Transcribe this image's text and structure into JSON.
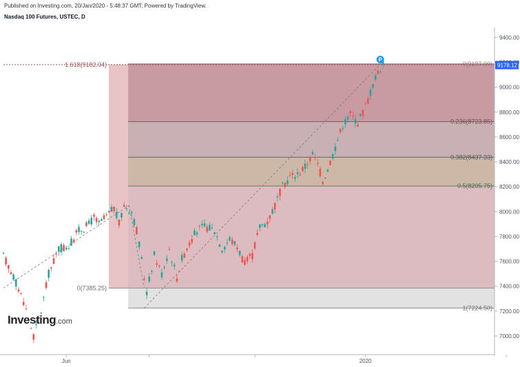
{
  "header": {
    "published": "Published on Investing.com, 20/Jan/2020 - 5:48:37 GMT, Powered by TradingView.",
    "symbol": "Nasdaq 100 Futures, USTEC, D"
  },
  "logo": {
    "main": "Investing",
    "suffix": ".com"
  },
  "colors": {
    "up_candle": "#26a69a",
    "down_candle": "#ef5350",
    "last_price_badge": "#2962ff",
    "fib_zone_top": "#c89aa2",
    "fib_zone_second": "#c8b0b4",
    "fib_zone_third": "#cdb8a8",
    "fib_zone_main": "#dcbcc0",
    "fib_zone_left_ext": "#e8c4c6",
    "fib_zone_bottom": "#e2e2e2"
  },
  "chart_data": {
    "type": "candlestick",
    "symbol": "USTEC",
    "ylim": [
      6850,
      9480
    ],
    "y_ticks": [
      {
        "value": 9400,
        "label": "9400.00"
      },
      {
        "value": 9200,
        "label": "9200.00"
      },
      {
        "value": 9000,
        "label": "9000.00"
      },
      {
        "value": 8800,
        "label": "8800.00"
      },
      {
        "value": 8600,
        "label": "8600.00"
      },
      {
        "value": 8400,
        "label": "8400.00"
      },
      {
        "value": 8200,
        "label": "8200.00"
      },
      {
        "value": 8000,
        "label": "8000.00"
      },
      {
        "value": 7800,
        "label": "7800.00"
      },
      {
        "value": 7600,
        "label": "7600.00"
      },
      {
        "value": 7400,
        "label": "7400.00"
      },
      {
        "value": 7200,
        "label": "7200.00"
      },
      {
        "value": 7000,
        "label": "7000.00"
      }
    ],
    "x_ticks": [
      {
        "index": 25,
        "label": "Jun"
      },
      {
        "index": 144,
        "label": "2020"
      }
    ],
    "x_minor_ticks": [
      58,
      100,
      200,
      240
    ],
    "last_price": {
      "value": 9178.12,
      "label": "9178.12"
    },
    "fib_levels": [
      {
        "ratio": 0,
        "value": 9187.0,
        "label": "0(9187.00)"
      },
      {
        "ratio": 0.236,
        "value": 8723.85,
        "label": "0.236(8723.85)"
      },
      {
        "ratio": 0.382,
        "value": 8437.33,
        "label": "0.382(8437.33)"
      },
      {
        "ratio": 0.5,
        "value": 8205.75,
        "label": "0.5(8205.75)"
      },
      {
        "ratio": 1,
        "value": 7224.5,
        "label": "1(7224.50)"
      }
    ],
    "fib_extension": [
      {
        "ratio": 1.618,
        "value": 9182.04,
        "label": "1.618(9182.04)"
      },
      {
        "ratio": 0,
        "value": 7385.25,
        "label": "0(7385.25)"
      }
    ],
    "trend_lines": [
      {
        "from": [
          0,
          7385.25
        ],
        "to": [
          50,
          8050
        ]
      },
      {
        "from": [
          50,
          8050
        ],
        "to": [
          56,
          7385.25
        ]
      },
      {
        "from": [
          56,
          7224.5
        ],
        "to": [
          150,
          9187
        ]
      }
    ],
    "series": [
      {
        "name": "USTEC",
        "anchors": [
          [
            0,
            7640
          ],
          [
            4,
            7480
          ],
          [
            8,
            7280
          ],
          [
            12,
            7000
          ],
          [
            15,
            7200
          ],
          [
            18,
            7500
          ],
          [
            22,
            7700
          ],
          [
            26,
            7720
          ],
          [
            30,
            7850
          ],
          [
            33,
            7880
          ],
          [
            36,
            7950
          ],
          [
            38,
            7900
          ],
          [
            41,
            7960
          ],
          [
            44,
            8030
          ],
          [
            46,
            7900
          ],
          [
            48,
            8050
          ],
          [
            51,
            8000
          ],
          [
            53,
            7850
          ],
          [
            55,
            7600
          ],
          [
            57,
            7350
          ],
          [
            60,
            7650
          ],
          [
            63,
            7500
          ],
          [
            66,
            7700
          ],
          [
            69,
            7470
          ],
          [
            71,
            7620
          ],
          [
            74,
            7750
          ],
          [
            77,
            7850
          ],
          [
            80,
            7880
          ],
          [
            84,
            7850
          ],
          [
            87,
            7700
          ],
          [
            90,
            7780
          ],
          [
            93,
            7720
          ],
          [
            96,
            7580
          ],
          [
            99,
            7650
          ],
          [
            102,
            7880
          ],
          [
            105,
            7920
          ],
          [
            108,
            8050
          ],
          [
            111,
            8200
          ],
          [
            114,
            8280
          ],
          [
            117,
            8300
          ],
          [
            120,
            8360
          ],
          [
            123,
            8460
          ],
          [
            125,
            8380
          ],
          [
            127,
            8250
          ],
          [
            129,
            8340
          ],
          [
            132,
            8520
          ],
          [
            135,
            8700
          ],
          [
            138,
            8780
          ],
          [
            141,
            8720
          ],
          [
            143,
            8800
          ],
          [
            145,
            8900
          ],
          [
            147,
            9020
          ],
          [
            149,
            9120
          ],
          [
            151,
            9178
          ]
        ]
      }
    ]
  }
}
